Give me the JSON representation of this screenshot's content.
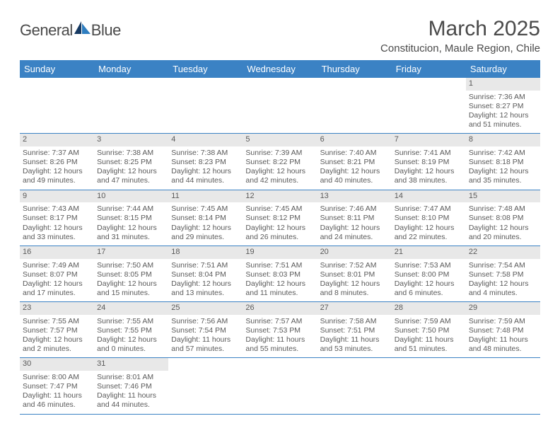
{
  "logo": {
    "word1": "General",
    "word2": "Blue"
  },
  "title": "March 2025",
  "location": "Constitucion, Maule Region, Chile",
  "colors": {
    "header_bg": "#3b82c4",
    "header_text": "#ffffff",
    "daynum_bg": "#e8e8e8",
    "text": "#4a4a4a",
    "cell_text": "#5a5a5a",
    "rule": "#3b82c4",
    "logo_dark": "#173a63",
    "logo_blue": "#2f7ec0"
  },
  "weekdays": [
    "Sunday",
    "Monday",
    "Tuesday",
    "Wednesday",
    "Thursday",
    "Friday",
    "Saturday"
  ],
  "weeks": [
    [
      null,
      null,
      null,
      null,
      null,
      null,
      {
        "n": "1",
        "sr": "Sunrise: 7:36 AM",
        "ss": "Sunset: 8:27 PM",
        "d1": "Daylight: 12 hours",
        "d2": "and 51 minutes."
      }
    ],
    [
      {
        "n": "2",
        "sr": "Sunrise: 7:37 AM",
        "ss": "Sunset: 8:26 PM",
        "d1": "Daylight: 12 hours",
        "d2": "and 49 minutes."
      },
      {
        "n": "3",
        "sr": "Sunrise: 7:38 AM",
        "ss": "Sunset: 8:25 PM",
        "d1": "Daylight: 12 hours",
        "d2": "and 47 minutes."
      },
      {
        "n": "4",
        "sr": "Sunrise: 7:38 AM",
        "ss": "Sunset: 8:23 PM",
        "d1": "Daylight: 12 hours",
        "d2": "and 44 minutes."
      },
      {
        "n": "5",
        "sr": "Sunrise: 7:39 AM",
        "ss": "Sunset: 8:22 PM",
        "d1": "Daylight: 12 hours",
        "d2": "and 42 minutes."
      },
      {
        "n": "6",
        "sr": "Sunrise: 7:40 AM",
        "ss": "Sunset: 8:21 PM",
        "d1": "Daylight: 12 hours",
        "d2": "and 40 minutes."
      },
      {
        "n": "7",
        "sr": "Sunrise: 7:41 AM",
        "ss": "Sunset: 8:19 PM",
        "d1": "Daylight: 12 hours",
        "d2": "and 38 minutes."
      },
      {
        "n": "8",
        "sr": "Sunrise: 7:42 AM",
        "ss": "Sunset: 8:18 PM",
        "d1": "Daylight: 12 hours",
        "d2": "and 35 minutes."
      }
    ],
    [
      {
        "n": "9",
        "sr": "Sunrise: 7:43 AM",
        "ss": "Sunset: 8:17 PM",
        "d1": "Daylight: 12 hours",
        "d2": "and 33 minutes."
      },
      {
        "n": "10",
        "sr": "Sunrise: 7:44 AM",
        "ss": "Sunset: 8:15 PM",
        "d1": "Daylight: 12 hours",
        "d2": "and 31 minutes."
      },
      {
        "n": "11",
        "sr": "Sunrise: 7:45 AM",
        "ss": "Sunset: 8:14 PM",
        "d1": "Daylight: 12 hours",
        "d2": "and 29 minutes."
      },
      {
        "n": "12",
        "sr": "Sunrise: 7:45 AM",
        "ss": "Sunset: 8:12 PM",
        "d1": "Daylight: 12 hours",
        "d2": "and 26 minutes."
      },
      {
        "n": "13",
        "sr": "Sunrise: 7:46 AM",
        "ss": "Sunset: 8:11 PM",
        "d1": "Daylight: 12 hours",
        "d2": "and 24 minutes."
      },
      {
        "n": "14",
        "sr": "Sunrise: 7:47 AM",
        "ss": "Sunset: 8:10 PM",
        "d1": "Daylight: 12 hours",
        "d2": "and 22 minutes."
      },
      {
        "n": "15",
        "sr": "Sunrise: 7:48 AM",
        "ss": "Sunset: 8:08 PM",
        "d1": "Daylight: 12 hours",
        "d2": "and 20 minutes."
      }
    ],
    [
      {
        "n": "16",
        "sr": "Sunrise: 7:49 AM",
        "ss": "Sunset: 8:07 PM",
        "d1": "Daylight: 12 hours",
        "d2": "and 17 minutes."
      },
      {
        "n": "17",
        "sr": "Sunrise: 7:50 AM",
        "ss": "Sunset: 8:05 PM",
        "d1": "Daylight: 12 hours",
        "d2": "and 15 minutes."
      },
      {
        "n": "18",
        "sr": "Sunrise: 7:51 AM",
        "ss": "Sunset: 8:04 PM",
        "d1": "Daylight: 12 hours",
        "d2": "and 13 minutes."
      },
      {
        "n": "19",
        "sr": "Sunrise: 7:51 AM",
        "ss": "Sunset: 8:03 PM",
        "d1": "Daylight: 12 hours",
        "d2": "and 11 minutes."
      },
      {
        "n": "20",
        "sr": "Sunrise: 7:52 AM",
        "ss": "Sunset: 8:01 PM",
        "d1": "Daylight: 12 hours",
        "d2": "and 8 minutes."
      },
      {
        "n": "21",
        "sr": "Sunrise: 7:53 AM",
        "ss": "Sunset: 8:00 PM",
        "d1": "Daylight: 12 hours",
        "d2": "and 6 minutes."
      },
      {
        "n": "22",
        "sr": "Sunrise: 7:54 AM",
        "ss": "Sunset: 7:58 PM",
        "d1": "Daylight: 12 hours",
        "d2": "and 4 minutes."
      }
    ],
    [
      {
        "n": "23",
        "sr": "Sunrise: 7:55 AM",
        "ss": "Sunset: 7:57 PM",
        "d1": "Daylight: 12 hours",
        "d2": "and 2 minutes."
      },
      {
        "n": "24",
        "sr": "Sunrise: 7:55 AM",
        "ss": "Sunset: 7:55 PM",
        "d1": "Daylight: 12 hours",
        "d2": "and 0 minutes."
      },
      {
        "n": "25",
        "sr": "Sunrise: 7:56 AM",
        "ss": "Sunset: 7:54 PM",
        "d1": "Daylight: 11 hours",
        "d2": "and 57 minutes."
      },
      {
        "n": "26",
        "sr": "Sunrise: 7:57 AM",
        "ss": "Sunset: 7:53 PM",
        "d1": "Daylight: 11 hours",
        "d2": "and 55 minutes."
      },
      {
        "n": "27",
        "sr": "Sunrise: 7:58 AM",
        "ss": "Sunset: 7:51 PM",
        "d1": "Daylight: 11 hours",
        "d2": "and 53 minutes."
      },
      {
        "n": "28",
        "sr": "Sunrise: 7:59 AM",
        "ss": "Sunset: 7:50 PM",
        "d1": "Daylight: 11 hours",
        "d2": "and 51 minutes."
      },
      {
        "n": "29",
        "sr": "Sunrise: 7:59 AM",
        "ss": "Sunset: 7:48 PM",
        "d1": "Daylight: 11 hours",
        "d2": "and 48 minutes."
      }
    ],
    [
      {
        "n": "30",
        "sr": "Sunrise: 8:00 AM",
        "ss": "Sunset: 7:47 PM",
        "d1": "Daylight: 11 hours",
        "d2": "and 46 minutes."
      },
      {
        "n": "31",
        "sr": "Sunrise: 8:01 AM",
        "ss": "Sunset: 7:46 PM",
        "d1": "Daylight: 11 hours",
        "d2": "and 44 minutes."
      },
      null,
      null,
      null,
      null,
      null
    ]
  ]
}
